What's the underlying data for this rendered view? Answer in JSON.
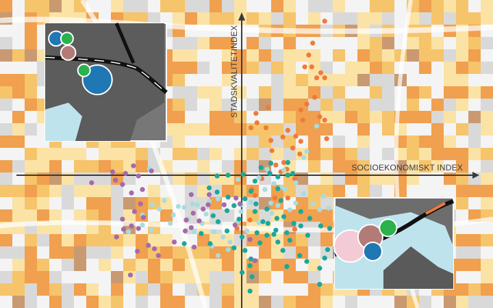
{
  "chart_data": {
    "type": "scatter",
    "title": "",
    "xlabel": "SOCIOEKONOMISKT INDEX",
    "ylabel": "STADSKVALITETINDEX",
    "xlim": [
      -2.55,
      2.4
    ],
    "ylim": [
      -1.6,
      2.04
    ],
    "grid": false,
    "legend": "none",
    "colors": {
      "background_high": "#f0a04e",
      "background_mid": "#f6c46b",
      "background_low": "#fbe3a5",
      "background_grey": "#d9d9d9",
      "background_brown": "#c99a72",
      "orange_series": "#f07a3a",
      "lightcyan_series": "#a8dcdf",
      "teal_series": "#1aa89a",
      "purple_series": "#a46aab",
      "inset_blue": "#1f77b4",
      "inset_green": "#2ab24b",
      "inset_rose": "#b27b78",
      "inset_pink": "#f4cad6"
    },
    "series": [
      {
        "color": "#f07a3a",
        "points": [
          [
            0.71,
            1.79
          ],
          [
            0.59,
            1.53
          ],
          [
            0.55,
            1.39
          ],
          [
            0.58,
            1.25
          ],
          [
            0.51,
            1.25
          ],
          [
            0.67,
            1.18
          ],
          [
            0.71,
            1.12
          ],
          [
            0.63,
            1.12
          ],
          [
            0.61,
            0.89
          ],
          [
            0.53,
            0.81
          ],
          [
            0.14,
            0.77
          ],
          [
            0.47,
            0.74
          ],
          [
            0.66,
            0.66
          ],
          [
            0.71,
            0.62
          ],
          [
            0.49,
            0.62
          ],
          [
            0.02,
            0.7
          ],
          [
            0.03,
            0.59
          ],
          [
            -0.03,
            0.53
          ],
          [
            0.12,
            0.53
          ],
          [
            0.34,
            0.5
          ],
          [
            0.29,
            0.42
          ],
          [
            0.42,
            0.43
          ],
          [
            0.17,
            0.38
          ],
          [
            0.73,
            0.4
          ],
          [
            0.47,
            0.37
          ],
          [
            0.18,
            0.26
          ],
          [
            0.39,
            0.29
          ],
          [
            0.46,
            0.22
          ],
          [
            0.22,
            0.09
          ],
          [
            0.3,
            0.12
          ],
          [
            0.33,
            0.04
          ],
          [
            0.27,
            0.01
          ],
          [
            0.41,
            -0.07
          ],
          [
            0.08,
            -0.07
          ],
          [
            0.01,
            -0.27
          ],
          [
            -0.02,
            -0.2
          ],
          [
            0.34,
            -0.3
          ],
          [
            0.21,
            -0.3
          ],
          [
            -0.04,
            -0.56
          ],
          [
            0.41,
            -0.67
          ],
          [
            -0.17,
            -0.66
          ]
        ]
      },
      {
        "color": "#a8dcdf",
        "points": [
          [
            0.63,
            0.55
          ],
          [
            0.53,
            0.25
          ],
          [
            0.5,
            0.18
          ],
          [
            0.3,
            0.03
          ],
          [
            0.13,
            0.04
          ],
          [
            0.05,
            -0.06
          ],
          [
            -0.16,
            -0.08
          ],
          [
            0.28,
            -0.17
          ],
          [
            -0.36,
            -0.31
          ],
          [
            -0.45,
            -0.34
          ],
          [
            -0.57,
            -0.38
          ],
          [
            -0.62,
            -0.37
          ],
          [
            -0.76,
            -0.4
          ],
          [
            -0.95,
            -0.43
          ],
          [
            -1.02,
            -0.38
          ],
          [
            -0.9,
            -0.33
          ],
          [
            -0.7,
            -0.41
          ],
          [
            -0.81,
            -0.5
          ],
          [
            -0.66,
            -0.55
          ],
          [
            -0.84,
            -0.6
          ],
          [
            -0.48,
            -0.49
          ],
          [
            -0.52,
            -0.6
          ],
          [
            -0.4,
            -0.7
          ],
          [
            -0.31,
            -0.76
          ],
          [
            -0.24,
            -0.82
          ],
          [
            -0.17,
            -0.59
          ],
          [
            -0.13,
            -0.46
          ],
          [
            -0.07,
            -0.69
          ],
          [
            0.05,
            -0.59
          ],
          [
            -0.26,
            -0.91
          ],
          [
            -0.42,
            -0.87
          ],
          [
            -0.36,
            -0.98
          ],
          [
            -1.03,
            -0.68
          ],
          [
            -1.12,
            -0.62
          ],
          [
            -1.26,
            -0.7
          ],
          [
            -1.12,
            -0.5
          ],
          [
            -0.6,
            -0.7
          ],
          [
            -1.05,
            0.05
          ],
          [
            0.11,
            -0.2
          ],
          [
            0.17,
            -0.36
          ],
          [
            0.24,
            -0.39
          ],
          [
            0.36,
            -0.44
          ],
          [
            0.42,
            -0.36
          ],
          [
            0.5,
            -0.25
          ],
          [
            0.59,
            -0.37
          ],
          [
            0.66,
            -0.44
          ],
          [
            0.75,
            -0.42
          ],
          [
            0.83,
            -0.47
          ],
          [
            0.18,
            -0.48
          ],
          [
            -0.13,
            -0.38
          ],
          [
            0.31,
            -0.2
          ],
          [
            0.42,
            -0.12
          ],
          [
            0.7,
            -0.28
          ],
          [
            0.9,
            -0.36
          ],
          [
            0.2,
            -0.13
          ],
          [
            -0.03,
            -0.35
          ]
        ]
      },
      {
        "color": "#1aa89a",
        "points": [
          [
            0.17,
            0.11
          ],
          [
            0.34,
            0.12
          ],
          [
            0.07,
            0.06
          ],
          [
            0.16,
            -0.01
          ],
          [
            0.39,
            -0.01
          ],
          [
            0.24,
            -0.05
          ],
          [
            -0.11,
            -0.02
          ],
          [
            -0.26,
            -0.03
          ],
          [
            -0.37,
            -0.04
          ],
          [
            0.01,
            -0.1
          ],
          [
            -0.03,
            -0.22
          ],
          [
            0.24,
            -0.19
          ],
          [
            -0.37,
            -0.23
          ],
          [
            -0.45,
            -0.18
          ],
          [
            -0.36,
            -0.58
          ],
          [
            -0.41,
            -0.51
          ],
          [
            -0.27,
            -0.45
          ],
          [
            -0.2,
            -0.39
          ],
          [
            -0.09,
            -0.31
          ],
          [
            0.02,
            -0.37
          ],
          [
            0.27,
            -0.33
          ],
          [
            0.13,
            -0.43
          ],
          [
            0.23,
            -0.54
          ],
          [
            0.14,
            -0.6
          ],
          [
            0.22,
            -0.68
          ],
          [
            0.13,
            -0.74
          ],
          [
            0.33,
            -0.71
          ],
          [
            0.4,
            -0.6
          ],
          [
            0.47,
            -0.46
          ],
          [
            0.56,
            -0.54
          ],
          [
            0.67,
            -0.63
          ],
          [
            0.76,
            -0.66
          ],
          [
            0.85,
            -0.62
          ],
          [
            0.89,
            -0.52
          ],
          [
            0.92,
            -0.6
          ],
          [
            1.02,
            -0.66
          ],
          [
            1.07,
            -0.47
          ],
          [
            1.1,
            -0.59
          ],
          [
            1.16,
            -0.48
          ],
          [
            1.17,
            -0.33
          ],
          [
            1.11,
            -0.34
          ],
          [
            0.95,
            -0.44
          ],
          [
            1.03,
            -0.83
          ],
          [
            0.98,
            -0.88
          ],
          [
            0.82,
            -0.96
          ],
          [
            0.74,
            -0.91
          ],
          [
            0.71,
            -1.01
          ],
          [
            0.66,
            -1.13
          ],
          [
            0.66,
            -1.32
          ],
          [
            0.53,
            -1.05
          ],
          [
            0.46,
            -0.98
          ],
          [
            0.29,
            -0.92
          ],
          [
            0.33,
            -1.11
          ],
          [
            0.24,
            -0.82
          ],
          [
            0.06,
            -0.83
          ],
          [
            0.03,
            -0.71
          ],
          [
            -0.09,
            -0.92
          ],
          [
            -0.12,
            -0.76
          ],
          [
            -0.03,
            -1.02
          ],
          [
            -0.04,
            -1.1
          ],
          [
            -0.02,
            -1.23
          ],
          [
            -0.12,
            -1.18
          ],
          [
            -0.04,
            -1.4
          ],
          [
            -0.27,
            -0.69
          ],
          [
            -0.15,
            -0.55
          ],
          [
            0.09,
            -0.58
          ],
          [
            -0.44,
            -0.84
          ],
          [
            -0.7,
            -0.84
          ],
          [
            -0.53,
            -0.72
          ],
          [
            0.34,
            -0.03
          ],
          [
            -0.26,
            -0.29
          ],
          [
            0.54,
            -0.74
          ],
          [
            0.36,
            -0.8
          ],
          [
            -0.2,
            -0.89
          ],
          [
            0.01,
            -0.46
          ],
          [
            0.3,
            -0.52
          ],
          [
            0.2,
            -0.73
          ],
          [
            0.47,
            -0.63
          ],
          [
            0.83,
            -0.72
          ],
          [
            1.28,
            -0.41
          ]
        ]
      },
      {
        "color": "#a46aab",
        "points": [
          [
            -1.21,
            0.08
          ],
          [
            -1.29,
            -0.01
          ],
          [
            -1.39,
            -0.09
          ],
          [
            -1.63,
            -0.12
          ],
          [
            -1.32,
            -0.14
          ],
          [
            -1.23,
            -0.24
          ],
          [
            -1.14,
            -0.37
          ],
          [
            -1.2,
            -0.46
          ],
          [
            -1.11,
            -0.53
          ],
          [
            -1.23,
            -0.63
          ],
          [
            -1.16,
            -0.66
          ],
          [
            -1.31,
            -0.67
          ],
          [
            -1.38,
            -0.76
          ],
          [
            -1.06,
            -0.86
          ],
          [
            -1.17,
            -0.93
          ],
          [
            -1.0,
            -0.9
          ],
          [
            -0.96,
            -0.98
          ],
          [
            -0.8,
            -0.82
          ],
          [
            -0.69,
            -0.69
          ],
          [
            -0.63,
            -0.65
          ],
          [
            -0.55,
            -0.57
          ],
          [
            -0.61,
            -0.48
          ],
          [
            -0.46,
            -0.38
          ],
          [
            -0.3,
            -0.38
          ],
          [
            -0.18,
            -0.3
          ],
          [
            -0.14,
            -0.37
          ],
          [
            -0.45,
            -0.26
          ],
          [
            -0.63,
            -0.26
          ],
          [
            -0.51,
            -0.43
          ],
          [
            -0.04,
            -0.79
          ],
          [
            0.01,
            -1.04
          ],
          [
            -1.24,
            -1.21
          ],
          [
            -1.32,
            -0.55
          ],
          [
            -1.12,
            -0.2
          ],
          [
            -0.68,
            -0.56
          ],
          [
            -0.6,
            -0.88
          ],
          [
            -0.19,
            -0.62
          ],
          [
            -1.03,
            0.02
          ],
          [
            -1.42,
            0.01
          ],
          [
            -1.16,
            -0.04
          ]
        ]
      }
    ],
    "insets": [
      {
        "bubbles": [
          {
            "color": "#1f77b4",
            "size": 0.12
          },
          {
            "color": "#2ab24b",
            "size": 0.1
          },
          {
            "color": "#b27b78",
            "size": 0.12
          },
          {
            "color": "#1f77b4",
            "size": 0.24
          },
          {
            "color": "#2ab24b",
            "size": 0.1
          }
        ]
      },
      {
        "bubbles": [
          {
            "color": "#f4cad6",
            "size": 0.26
          },
          {
            "color": "#b27b78",
            "size": 0.2
          },
          {
            "color": "#2ab24b",
            "size": 0.14
          },
          {
            "color": "#1f77b4",
            "size": 0.15
          }
        ]
      }
    ]
  }
}
